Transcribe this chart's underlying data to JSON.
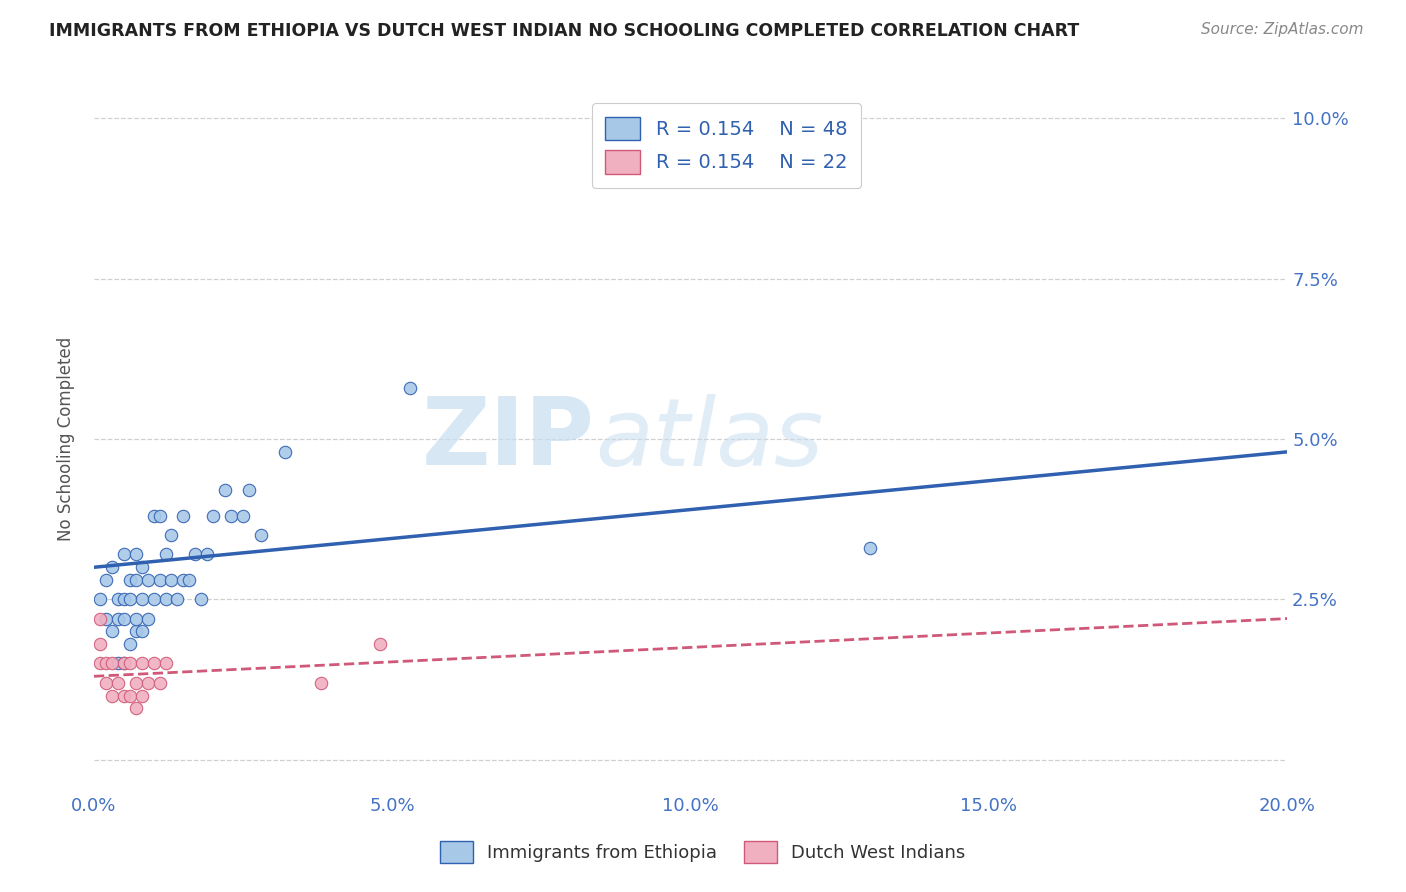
{
  "title": "IMMIGRANTS FROM ETHIOPIA VS DUTCH WEST INDIAN NO SCHOOLING COMPLETED CORRELATION CHART",
  "source": "Source: ZipAtlas.com",
  "ylabel": "No Schooling Completed",
  "xlim": [
    0.0,
    0.2
  ],
  "ylim": [
    -0.005,
    0.105
  ],
  "yticks": [
    0.0,
    0.025,
    0.05,
    0.075,
    0.1
  ],
  "ytick_labels": [
    "",
    "2.5%",
    "5.0%",
    "7.5%",
    "10.0%"
  ],
  "xticks": [
    0.0,
    0.05,
    0.1,
    0.15,
    0.2
  ],
  "xtick_labels": [
    "0.0%",
    "5.0%",
    "10.0%",
    "15.0%",
    "20.0%"
  ],
  "background_color": "#ffffff",
  "grid_color": "#d0d0d0",
  "blue_scatter_x": [
    0.001,
    0.002,
    0.002,
    0.003,
    0.003,
    0.004,
    0.004,
    0.004,
    0.005,
    0.005,
    0.005,
    0.005,
    0.006,
    0.006,
    0.006,
    0.007,
    0.007,
    0.007,
    0.007,
    0.008,
    0.008,
    0.008,
    0.009,
    0.009,
    0.01,
    0.01,
    0.011,
    0.011,
    0.012,
    0.012,
    0.013,
    0.013,
    0.014,
    0.015,
    0.015,
    0.016,
    0.017,
    0.018,
    0.019,
    0.02,
    0.022,
    0.023,
    0.025,
    0.026,
    0.028,
    0.032,
    0.053,
    0.13
  ],
  "blue_scatter_y": [
    0.025,
    0.022,
    0.028,
    0.02,
    0.03,
    0.015,
    0.022,
    0.025,
    0.015,
    0.022,
    0.025,
    0.032,
    0.018,
    0.025,
    0.028,
    0.02,
    0.022,
    0.028,
    0.032,
    0.02,
    0.025,
    0.03,
    0.022,
    0.028,
    0.025,
    0.038,
    0.028,
    0.038,
    0.025,
    0.032,
    0.028,
    0.035,
    0.025,
    0.028,
    0.038,
    0.028,
    0.032,
    0.025,
    0.032,
    0.038,
    0.042,
    0.038,
    0.038,
    0.042,
    0.035,
    0.048,
    0.058,
    0.033
  ],
  "pink_scatter_x": [
    0.001,
    0.001,
    0.001,
    0.002,
    0.002,
    0.003,
    0.003,
    0.004,
    0.005,
    0.005,
    0.006,
    0.006,
    0.007,
    0.007,
    0.008,
    0.008,
    0.009,
    0.01,
    0.011,
    0.012,
    0.038,
    0.048
  ],
  "pink_scatter_y": [
    0.015,
    0.018,
    0.022,
    0.012,
    0.015,
    0.01,
    0.015,
    0.012,
    0.01,
    0.015,
    0.01,
    0.015,
    0.008,
    0.012,
    0.01,
    0.015,
    0.012,
    0.015,
    0.012,
    0.015,
    0.012,
    0.018
  ],
  "blue_line_x": [
    0.0,
    0.2
  ],
  "blue_line_y": [
    0.03,
    0.048
  ],
  "pink_line_x": [
    0.0,
    0.2
  ],
  "pink_line_y": [
    0.013,
    0.022
  ],
  "blue_color": "#a8c8e8",
  "pink_color": "#f0b0c0",
  "blue_line_color": "#3060b0",
  "pink_line_color": "#d05878",
  "legend_blue_label": "R = 0.154    N = 48",
  "legend_pink_label": "R = 0.154    N = 22",
  "watermark_zip": "ZIP",
  "watermark_atlas": "atlas",
  "bottom_label_blue": "Immigrants from Ethiopia",
  "bottom_label_pink": "Dutch West Indians",
  "title_color": "#222222",
  "source_color": "#888888",
  "tick_color": "#4472c4",
  "ylabel_color": "#555555"
}
